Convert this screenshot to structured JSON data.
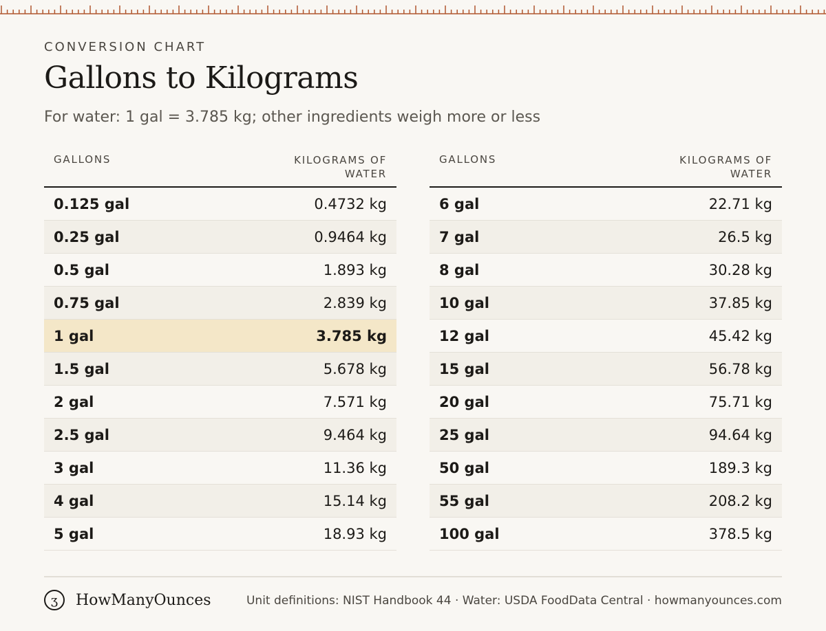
{
  "header": {
    "eyebrow": "CONVERSION CHART",
    "title": "Gallons to Kilograms",
    "subtitle": "For water: 1 gal = 3.785 kg; other ingredients weigh more or less"
  },
  "table": {
    "col_gallons": "GALLONS",
    "col_kg_line1": "KILOGRAMS OF",
    "col_kg_line2": "WATER",
    "left_rows": [
      {
        "gal": "0.125 gal",
        "kg": "0.4732 kg"
      },
      {
        "gal": "0.25 gal",
        "kg": "0.9464 kg"
      },
      {
        "gal": "0.5 gal",
        "kg": "1.893 kg"
      },
      {
        "gal": "0.75 gal",
        "kg": "2.839 kg"
      },
      {
        "gal": "1 gal",
        "kg": "3.785 kg"
      },
      {
        "gal": "1.5 gal",
        "kg": "5.678 kg"
      },
      {
        "gal": "2 gal",
        "kg": "7.571 kg"
      },
      {
        "gal": "2.5 gal",
        "kg": "9.464 kg"
      },
      {
        "gal": "3 gal",
        "kg": "11.36 kg"
      },
      {
        "gal": "4 gal",
        "kg": "15.14 kg"
      },
      {
        "gal": "5 gal",
        "kg": "18.93 kg"
      }
    ],
    "right_rows": [
      {
        "gal": "6 gal",
        "kg": "22.71 kg"
      },
      {
        "gal": "7 gal",
        "kg": "26.5 kg"
      },
      {
        "gal": "8 gal",
        "kg": "30.28 kg"
      },
      {
        "gal": "10 gal",
        "kg": "37.85 kg"
      },
      {
        "gal": "12 gal",
        "kg": "45.42 kg"
      },
      {
        "gal": "15 gal",
        "kg": "56.78 kg"
      },
      {
        "gal": "20 gal",
        "kg": "75.71 kg"
      },
      {
        "gal": "25 gal",
        "kg": "94.64 kg"
      },
      {
        "gal": "50 gal",
        "kg": "189.3 kg"
      },
      {
        "gal": "55 gal",
        "kg": "208.2 kg"
      },
      {
        "gal": "100 gal",
        "kg": "378.5 kg"
      }
    ],
    "highlight_row": "1 gal"
  },
  "footer": {
    "logo_glyph": "ʒ",
    "brand": "HowManyOunces",
    "source": "Unit definitions: NIST Handbook 44 · Water: USDA FoodData Central · howmanyounces.com"
  },
  "colors": {
    "background": "#f9f7f3",
    "ruler": "#b0562e",
    "highlight": "#f4e7c8",
    "alt_row": "#f2efe8"
  }
}
